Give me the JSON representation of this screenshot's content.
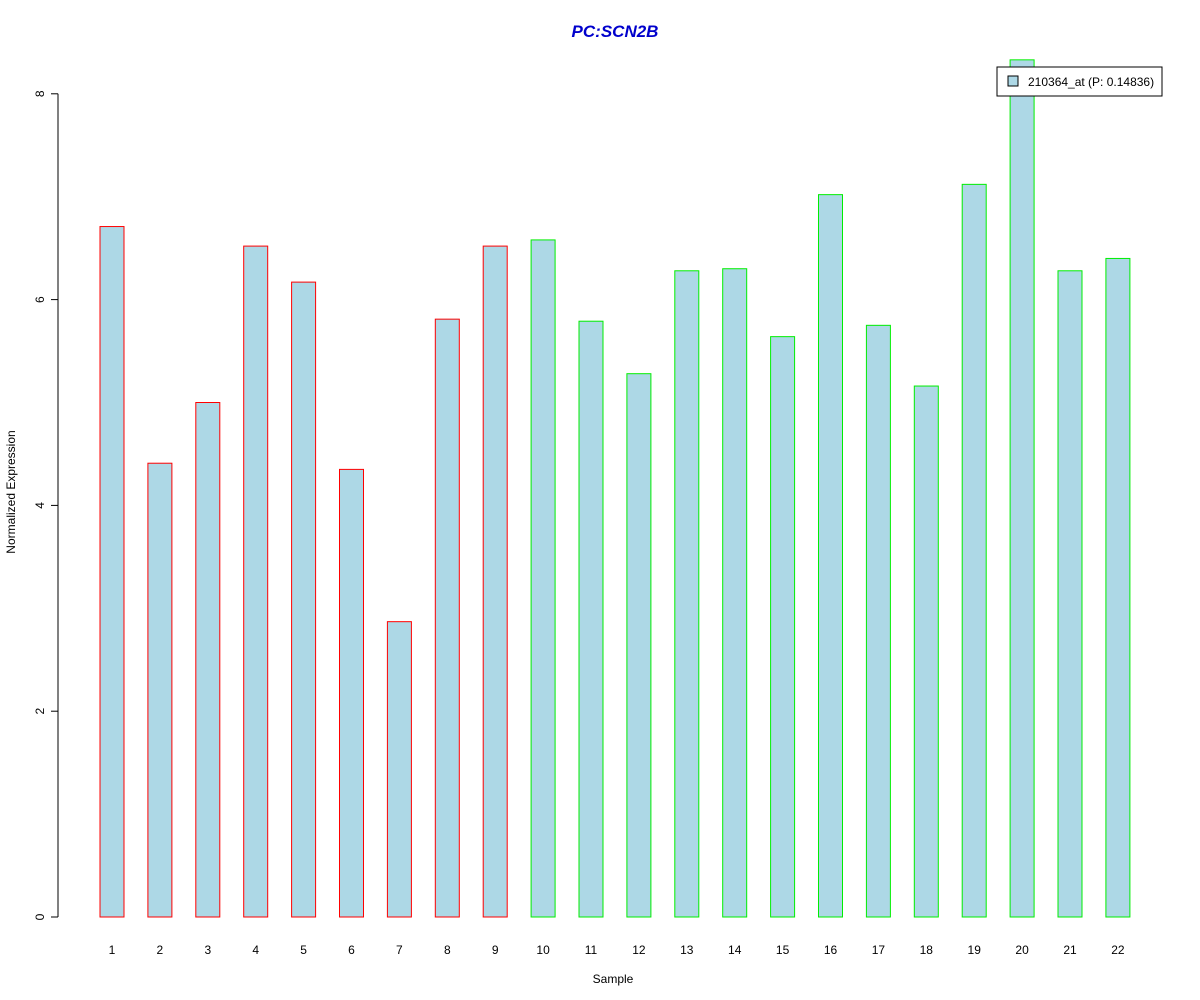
{
  "chart_data": {
    "type": "bar",
    "title": "PC:SCN2B",
    "xlabel": "Sample",
    "ylabel": "Normalized Expression",
    "ylim": [
      0,
      8.3
    ],
    "yticks": [
      0,
      2,
      4,
      6,
      8
    ],
    "grid": false,
    "categories": [
      "1",
      "2",
      "3",
      "4",
      "5",
      "6",
      "7",
      "8",
      "9",
      "10",
      "11",
      "12",
      "13",
      "14",
      "15",
      "16",
      "17",
      "18",
      "19",
      "20",
      "21",
      "22"
    ],
    "values": [
      6.71,
      4.41,
      5.0,
      6.52,
      6.17,
      4.35,
      2.87,
      5.81,
      6.52,
      6.58,
      5.79,
      5.28,
      6.28,
      6.3,
      5.64,
      7.02,
      5.75,
      5.16,
      7.12,
      8.33,
      6.28,
      6.4
    ],
    "bar_fill": "#add8e6",
    "group_colors": [
      "#ff0000",
      "#ff0000",
      "#ff0000",
      "#ff0000",
      "#ff0000",
      "#ff0000",
      "#ff0000",
      "#ff0000",
      "#ff0000",
      "#00ee00",
      "#00ee00",
      "#00ee00",
      "#00ee00",
      "#00ee00",
      "#00ee00",
      "#00ee00",
      "#00ee00",
      "#00ee00",
      "#00ee00",
      "#00ee00",
      "#00ee00",
      "#00ee00"
    ],
    "title_color": "#0000cc",
    "legend": {
      "position": "top-right",
      "label": "210364_at (P: 0.14836)"
    }
  }
}
